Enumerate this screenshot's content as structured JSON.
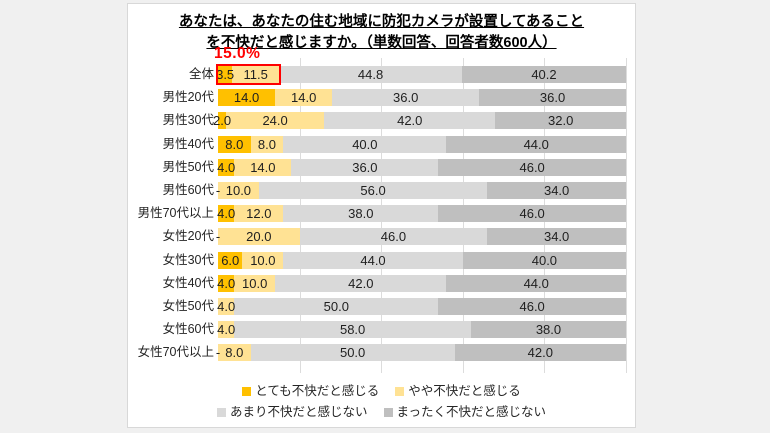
{
  "chart_data": {
    "type": "bar",
    "orientation": "horizontal-stacked",
    "title_line1": "あなたは、あなたの住む地域に防犯カメラが設置してあること",
    "title_line2": "を不快だと感じますか。（単数回答、回答者数600人）",
    "xlim": [
      0,
      100
    ],
    "gridlines_pct": [
      20,
      40,
      60,
      80,
      100
    ],
    "grid_on": true,
    "legend_position": "bottom",
    "annotation": {
      "label": "15.0%",
      "color": "#ff0000",
      "row_index": 0,
      "span_pct": 15.0
    },
    "series": [
      {
        "name": "とても不快だと感じる",
        "color": "#FFC000"
      },
      {
        "name": "やや不快だと感じる",
        "color": "#FFE294"
      },
      {
        "name": "あまり不快だと感じない",
        "color": "#D9D9D9"
      },
      {
        "name": "まったく不快だと感じない",
        "color": "#BFBFBF"
      }
    ],
    "categories": [
      "全体",
      "男性20代",
      "男性30代",
      "男性40代",
      "男性50代",
      "男性60代",
      "男性70代以上",
      "女性20代",
      "女性30代",
      "女性40代",
      "女性50代",
      "女性60代",
      "女性70代以上"
    ],
    "rows": [
      {
        "category": "全体",
        "values": [
          3.5,
          11.5,
          44.8,
          40.2
        ],
        "labels": [
          "3.5",
          "11.5",
          "44.8",
          "40.2"
        ]
      },
      {
        "category": "男性20代",
        "values": [
          14.0,
          14.0,
          36.0,
          36.0
        ],
        "labels": [
          "14.0",
          "14.0",
          "36.0",
          "36.0"
        ]
      },
      {
        "category": "男性30代",
        "values": [
          2.0,
          24.0,
          42.0,
          32.0
        ],
        "labels": [
          "2.0",
          "24.0",
          "42.0",
          "32.0"
        ]
      },
      {
        "category": "男性40代",
        "values": [
          8.0,
          8.0,
          40.0,
          44.0
        ],
        "labels": [
          "8.0",
          "8.0",
          "40.0",
          "44.0"
        ]
      },
      {
        "category": "男性50代",
        "values": [
          4.0,
          14.0,
          36.0,
          46.0
        ],
        "labels": [
          "4.0",
          "14.0",
          "36.0",
          "46.0"
        ]
      },
      {
        "category": "男性60代",
        "values": [
          0,
          10.0,
          56.0,
          34.0
        ],
        "labels": [
          "-",
          "10.0",
          "56.0",
          "34.0"
        ]
      },
      {
        "category": "男性70代以上",
        "values": [
          4.0,
          12.0,
          38.0,
          46.0
        ],
        "labels": [
          "4.0",
          "12.0",
          "38.0",
          "46.0"
        ]
      },
      {
        "category": "女性20代",
        "values": [
          0,
          20.0,
          46.0,
          34.0
        ],
        "labels": [
          "-",
          "20.0",
          "46.0",
          "34.0"
        ]
      },
      {
        "category": "女性30代",
        "values": [
          6.0,
          10.0,
          44.0,
          40.0
        ],
        "labels": [
          "6.0",
          "10.0",
          "44.0",
          "40.0"
        ]
      },
      {
        "category": "女性40代",
        "values": [
          4.0,
          10.0,
          42.0,
          44.0
        ],
        "labels": [
          "4.0",
          "10.0",
          "42.0",
          "44.0"
        ]
      },
      {
        "category": "女性50代",
        "values": [
          0,
          4.0,
          50.0,
          46.0
        ],
        "labels": [
          "",
          "4.0",
          "50.0",
          "46.0"
        ]
      },
      {
        "category": "女性60代",
        "values": [
          0,
          4.0,
          58.0,
          38.0
        ],
        "labels": [
          "",
          "4.0",
          "58.0",
          "38.0"
        ]
      },
      {
        "category": "女性70代以上",
        "values": [
          0,
          8.0,
          50.0,
          42.0
        ],
        "labels": [
          "-",
          "8.0",
          "50.0",
          "42.0"
        ]
      }
    ]
  }
}
